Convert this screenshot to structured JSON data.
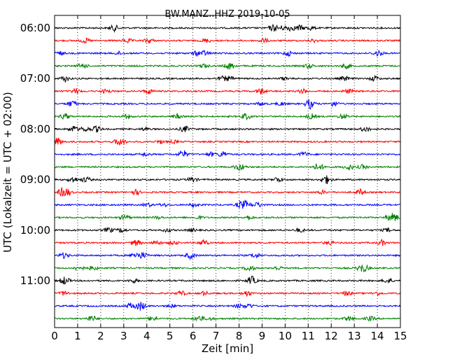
{
  "chart_data": {
    "type": "line",
    "title": "BW.MANZ..HHZ 2019-10-05",
    "xlabel": "Zeit  [min]",
    "ylabel": "UTC (Lokalzeit = UTC + 02:00)",
    "xlim": [
      0,
      15
    ],
    "x_ticks": [
      0,
      1,
      2,
      3,
      4,
      5,
      6,
      7,
      8,
      9,
      10,
      11,
      12,
      13,
      14,
      15
    ],
    "x_tick_labels": [
      "0",
      "1",
      "2",
      "3",
      "4",
      "5",
      "6",
      "7",
      "8",
      "9",
      "10",
      "11",
      "12",
      "13",
      "14",
      "15"
    ],
    "y_tick_labels": [
      "06:00",
      "07:00",
      "08:00",
      "09:00",
      "10:00",
      "11:00"
    ],
    "trace_minutes": 15,
    "traces_per_hour": 4,
    "trace_count": 24,
    "trace_colors": [
      "#000000",
      "#ff0000",
      "#0000ff",
      "#007f00"
    ],
    "vertical_grid": true,
    "grid_style": "dotted"
  }
}
